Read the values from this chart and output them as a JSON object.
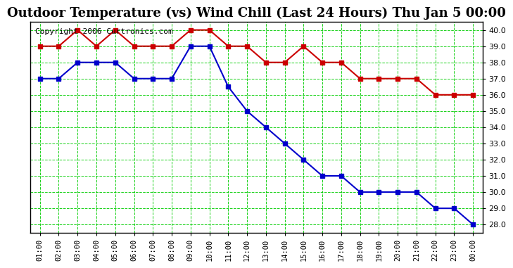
{
  "title": "Outdoor Temperature (vs) Wind Chill (Last 24 Hours) Thu Jan 5 00:00",
  "copyright": "Copyright 2006 Curtronics.com",
  "x_labels": [
    "01:00",
    "02:00",
    "03:00",
    "04:00",
    "05:00",
    "06:00",
    "07:00",
    "08:00",
    "09:00",
    "10:00",
    "11:00",
    "12:00",
    "13:00",
    "14:00",
    "15:00",
    "16:00",
    "17:00",
    "18:00",
    "19:00",
    "20:00",
    "21:00",
    "22:00",
    "23:00",
    "00:00"
  ],
  "temp_data": [
    39.0,
    39.0,
    40.0,
    39.0,
    40.0,
    39.0,
    39.0,
    39.0,
    40.0,
    40.0,
    39.0,
    39.0,
    38.0,
    38.0,
    39.0,
    38.0,
    38.0,
    37.0,
    37.0,
    37.0,
    37.0,
    36.0,
    36.0,
    36.0
  ],
  "wind_chill_data": [
    37.0,
    37.0,
    38.0,
    38.0,
    38.0,
    37.0,
    37.0,
    37.0,
    39.0,
    39.0,
    36.5,
    35.0,
    34.0,
    33.0,
    32.0,
    31.0,
    31.0,
    30.0,
    30.0,
    30.0,
    30.0,
    29.0,
    29.0,
    28.0
  ],
  "temp_color": "#cc0000",
  "wind_chill_color": "#0000cc",
  "grid_color": "#00cc00",
  "bg_color": "#ffffff",
  "ylim": [
    27.5,
    40.5
  ],
  "yticks": [
    28.0,
    29.0,
    30.0,
    31.0,
    32.0,
    33.0,
    34.0,
    35.0,
    36.0,
    37.0,
    38.0,
    39.0,
    40.0
  ],
  "title_fontsize": 13,
  "copyright_fontsize": 8
}
